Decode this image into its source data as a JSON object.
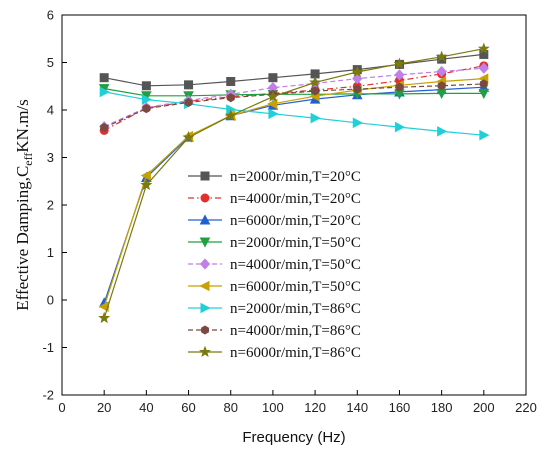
{
  "chart_data": {
    "type": "line",
    "xlabel": "Frequency (Hz)",
    "ylabel": {
      "main": "Effective Damping,C",
      "sub": "eff",
      "unit": "KN.m/s"
    },
    "xlim": [
      0,
      220
    ],
    "ylim": [
      -2,
      6
    ],
    "x_ticks": [
      "0",
      "20",
      "40",
      "60",
      "80",
      "100",
      "120",
      "140",
      "160",
      "180",
      "200",
      "220"
    ],
    "y_ticks": [
      "-2",
      "-1",
      "0",
      "1",
      "2",
      "3",
      "4",
      "5",
      "6"
    ],
    "legend_position": "inside-lower-right",
    "x": [
      20,
      40,
      60,
      80,
      100,
      120,
      140,
      160,
      180,
      200
    ],
    "series": [
      {
        "name": "n=2000r/min,T=20°C",
        "color": "#555555",
        "marker": "square",
        "dash": "solid",
        "values": [
          4.68,
          4.51,
          4.53,
          4.6,
          4.68,
          4.76,
          4.85,
          4.96,
          5.07,
          5.17
        ]
      },
      {
        "name": "n=4000r/min,T=20°C",
        "color": "#e03030",
        "marker": "circle",
        "dash": "dashdot",
        "values": [
          3.57,
          4.04,
          4.18,
          4.28,
          4.35,
          4.42,
          4.5,
          4.62,
          4.76,
          4.93
        ]
      },
      {
        "name": "n=6000r/min,T=20°C",
        "color": "#2060d0",
        "marker": "triangle-up",
        "dash": "solid",
        "values": [
          -0.06,
          2.58,
          3.43,
          3.88,
          4.1,
          4.23,
          4.32,
          4.38,
          4.43,
          4.48
        ]
      },
      {
        "name": "n=2000r/min,T=50°C",
        "color": "#20a040",
        "marker": "triangle-down",
        "dash": "solid",
        "values": [
          4.45,
          4.3,
          4.3,
          4.32,
          4.33,
          4.33,
          4.34,
          4.34,
          4.35,
          4.35
        ]
      },
      {
        "name": "n=4000r/min,T=50°C",
        "color": "#c080e8",
        "marker": "diamond",
        "dash": "dash",
        "values": [
          3.65,
          4.05,
          4.2,
          4.33,
          4.47,
          4.56,
          4.66,
          4.74,
          4.81,
          4.88
        ]
      },
      {
        "name": "n=6000r/min,T=50°C",
        "color": "#c8a000",
        "marker": "triangle-left",
        "dash": "solid",
        "values": [
          -0.14,
          2.62,
          3.45,
          3.88,
          4.13,
          4.29,
          4.42,
          4.52,
          4.6,
          4.66
        ]
      },
      {
        "name": "n=2000r/min,T=86°C",
        "color": "#20d0d8",
        "marker": "triangle-right",
        "dash": "solid",
        "values": [
          4.38,
          4.22,
          4.13,
          4.01,
          3.92,
          3.83,
          3.73,
          3.64,
          3.55,
          3.47
        ]
      },
      {
        "name": "n=4000r/min,T=86°C",
        "color": "#7a4a40",
        "marker": "hexagon",
        "dash": "dash",
        "values": [
          3.63,
          4.03,
          4.16,
          4.26,
          4.33,
          4.4,
          4.44,
          4.48,
          4.51,
          4.55
        ]
      },
      {
        "name": "n=6000r/min,T=86°C",
        "color": "#7a7a10",
        "marker": "star",
        "dash": "solid",
        "values": [
          -0.38,
          2.42,
          3.42,
          3.88,
          4.28,
          4.58,
          4.8,
          4.97,
          5.12,
          5.29
        ]
      }
    ]
  }
}
